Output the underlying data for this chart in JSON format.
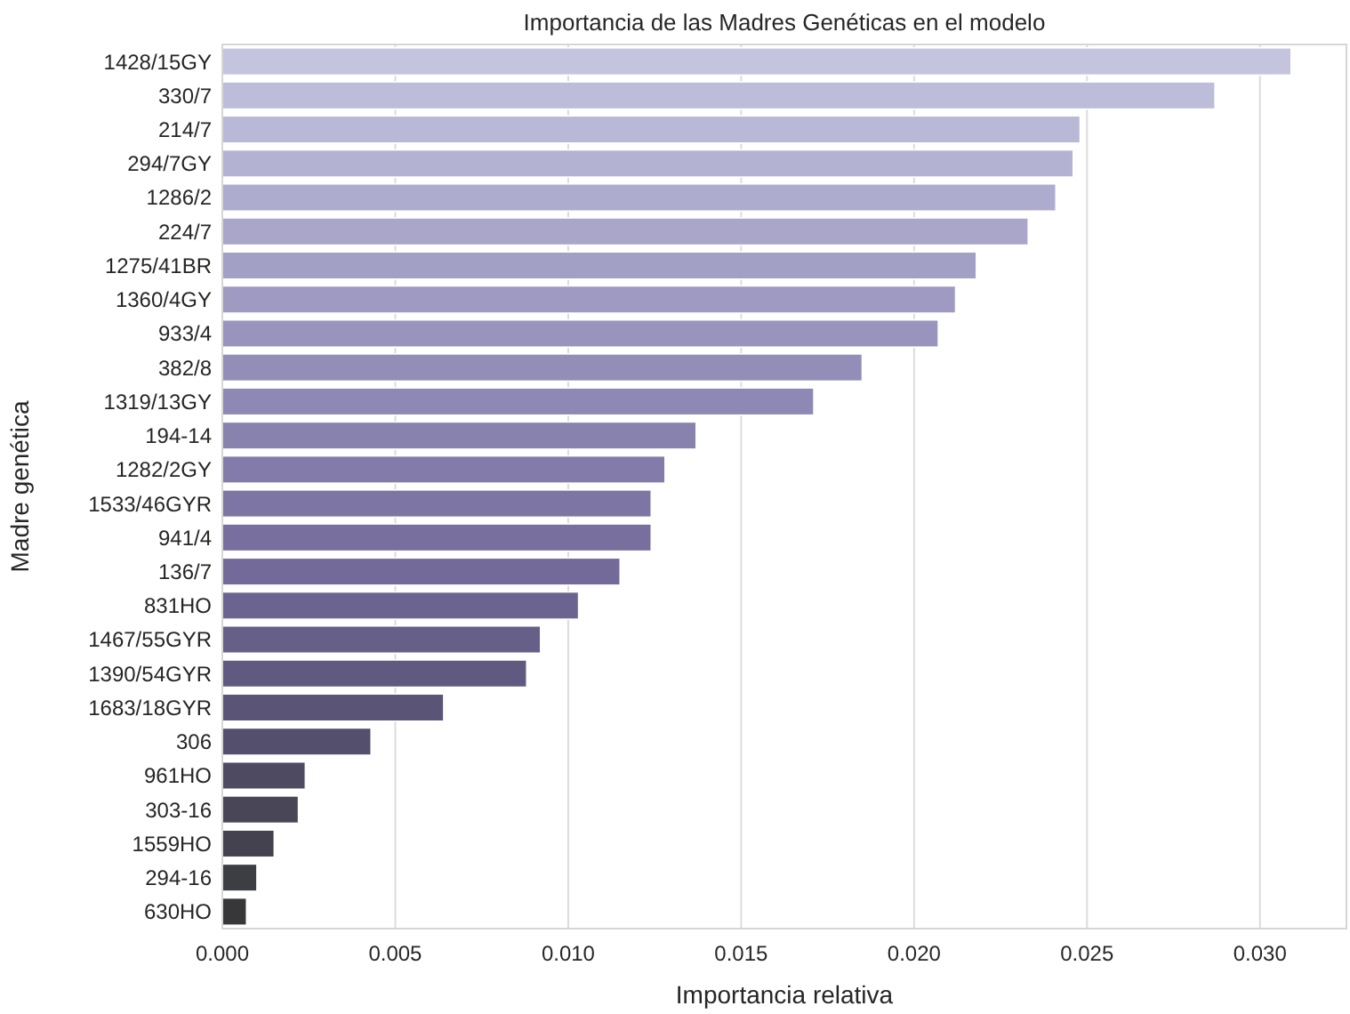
{
  "chart_data": {
    "type": "bar",
    "orientation": "horizontal",
    "title": "Importancia de las Madres Genéticas en el modelo",
    "xlabel": "Importancia relativa",
    "ylabel": "Madre genética",
    "categories": [
      "1428/15GY",
      "330/7",
      "214/7",
      "294/7GY",
      "1286/2",
      "224/7",
      "1275/41BR",
      "1360/4GY",
      "933/4",
      "382/8",
      "1319/13GY",
      "194-14",
      "1282/2GY",
      "1533/46GYR",
      "941/4",
      "136/7",
      "831HO",
      "1467/55GYR",
      "1390/54GYR",
      "1683/18GYR",
      "306",
      "961HO",
      "303-16",
      "1559HO",
      "294-16",
      "630HO"
    ],
    "values": [
      0.0309,
      0.0287,
      0.0248,
      0.0246,
      0.0241,
      0.0233,
      0.0218,
      0.0212,
      0.0207,
      0.0185,
      0.0171,
      0.0137,
      0.0128,
      0.0124,
      0.0124,
      0.0115,
      0.0103,
      0.0092,
      0.0088,
      0.0064,
      0.0043,
      0.0024,
      0.0022,
      0.0015,
      0.001,
      0.0007
    ],
    "colors": [
      "#c4c4de",
      "#bebdd9",
      "#b9b8d6",
      "#b4b2d2",
      "#aeacce",
      "#a9a6ca",
      "#a3a0c5",
      "#9e9ac1",
      "#9994bd",
      "#938eb8",
      "#8e88b4",
      "#8882af",
      "#837cab",
      "#7d76a5",
      "#786f9f",
      "#736a99",
      "#6c6490",
      "#665f88",
      "#605a80",
      "#5a5476",
      "#544f6c",
      "#4e4a62",
      "#494658",
      "#43424e",
      "#3d3d44",
      "#37373a"
    ],
    "xlim": [
      0,
      0.0325
    ],
    "xticks": [
      {
        "value": 0,
        "label": "0.000"
      },
      {
        "value": 0.005,
        "label": "0.005"
      },
      {
        "value": 0.01,
        "label": "0.010"
      },
      {
        "value": 0.015,
        "label": "0.015"
      },
      {
        "value": 0.02,
        "label": "0.020"
      },
      {
        "value": 0.025,
        "label": "0.025"
      },
      {
        "value": 0.03,
        "label": "0.030"
      }
    ],
    "grid": "x"
  }
}
